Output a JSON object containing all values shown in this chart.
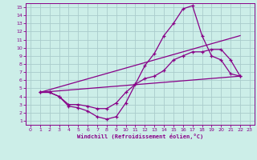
{
  "xlabel": "Windchill (Refroidissement éolien,°C)",
  "bg_color": "#cceee8",
  "grid_color": "#aacccc",
  "line_color": "#880088",
  "xlim": [
    -0.5,
    23.5
  ],
  "ylim": [
    0.5,
    15.5
  ],
  "xticks": [
    0,
    1,
    2,
    3,
    4,
    5,
    6,
    7,
    8,
    9,
    10,
    11,
    12,
    13,
    14,
    15,
    16,
    17,
    18,
    19,
    20,
    21,
    22,
    23
  ],
  "yticks": [
    1,
    2,
    3,
    4,
    5,
    6,
    7,
    8,
    9,
    10,
    11,
    12,
    13,
    14,
    15
  ],
  "line1_x": [
    1,
    2,
    3,
    4,
    5,
    6,
    7,
    8,
    9,
    10,
    11,
    12,
    13,
    14,
    15,
    16,
    17,
    18,
    19,
    20,
    21,
    22
  ],
  "line1_y": [
    4.5,
    4.5,
    4.0,
    2.8,
    2.6,
    2.2,
    1.5,
    1.2,
    1.5,
    3.2,
    5.5,
    7.8,
    9.3,
    11.5,
    13.0,
    14.8,
    15.2,
    11.5,
    9.0,
    8.5,
    6.8,
    6.5
  ],
  "line2_x": [
    1,
    2,
    3,
    4,
    5,
    6,
    7,
    8,
    9,
    10,
    11,
    12,
    13,
    14,
    15,
    16,
    17,
    18,
    19,
    20,
    21,
    22
  ],
  "line2_y": [
    4.5,
    4.5,
    4.0,
    3.0,
    3.0,
    2.8,
    2.5,
    2.5,
    3.2,
    4.5,
    5.5,
    6.2,
    6.5,
    7.2,
    8.5,
    9.0,
    9.5,
    9.5,
    9.8,
    9.8,
    8.5,
    6.5
  ],
  "line3_x": [
    1,
    22
  ],
  "line3_y": [
    4.5,
    6.5
  ],
  "line4_x": [
    1,
    22
  ],
  "line4_y": [
    4.5,
    11.5
  ]
}
